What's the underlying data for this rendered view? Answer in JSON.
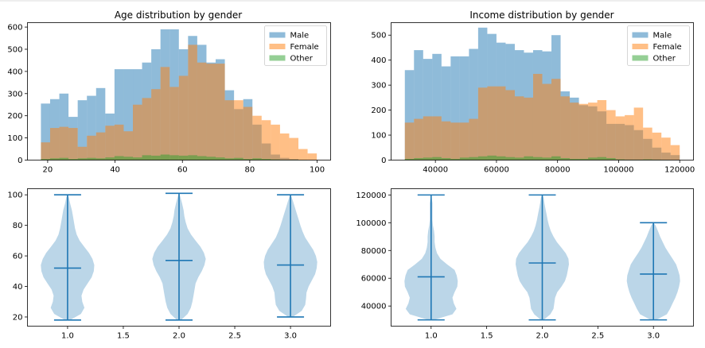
{
  "figure": {
    "top_line_color": "#dddddd"
  },
  "colors": {
    "Male": "#1f77b4",
    "Female": "#ff7f0e",
    "Other": "#2ca02c",
    "violin": "#1f77b4"
  },
  "chart_data": [
    {
      "id": "age_hist",
      "type": "bar",
      "subtype": "overlaid histogram",
      "title": "Age distribution by gender",
      "xlabel": "",
      "ylabel": "",
      "xlim": [
        14,
        104
      ],
      "ylim": [
        0,
        620
      ],
      "xticks": [
        20,
        40,
        60,
        80,
        100
      ],
      "yticks": [
        0,
        100,
        200,
        300,
        400,
        500,
        600
      ],
      "legend": "top-right",
      "alpha": 0.5,
      "series": [
        {
          "name": "Male",
          "bin_start": 18,
          "bin_width": 2.73,
          "values": [
            255,
            275,
            300,
            195,
            270,
            290,
            325,
            210,
            410,
            410,
            410,
            440,
            500,
            590,
            590,
            500,
            560,
            520,
            440,
            455,
            315,
            230,
            275,
            160,
            75,
            25,
            10,
            5,
            0,
            0
          ]
        },
        {
          "name": "Female",
          "bin_start": 18,
          "bin_width": 2.73,
          "values": [
            80,
            145,
            150,
            145,
            60,
            110,
            125,
            155,
            160,
            130,
            250,
            280,
            320,
            420,
            330,
            380,
            520,
            440,
            435,
            435,
            270,
            270,
            240,
            200,
            180,
            160,
            120,
            100,
            50,
            30
          ]
        },
        {
          "name": "Other",
          "bin_start": 18,
          "bin_width": 2.73,
          "values": [
            5,
            8,
            10,
            5,
            8,
            10,
            8,
            12,
            18,
            15,
            12,
            22,
            20,
            25,
            22,
            20,
            22,
            18,
            15,
            12,
            8,
            10,
            5,
            8,
            5,
            3,
            2,
            2,
            1,
            0
          ]
        }
      ]
    },
    {
      "id": "income_hist",
      "type": "bar",
      "subtype": "overlaid histogram",
      "title": "Income distribution by gender",
      "xlabel": "",
      "ylabel": "",
      "xlim": [
        25500,
        124500
      ],
      "ylim": [
        0,
        550
      ],
      "xticks": [
        40000,
        60000,
        80000,
        100000,
        120000
      ],
      "yticks": [
        0,
        100,
        200,
        300,
        400,
        500
      ],
      "legend": "top-right",
      "alpha": 0.5,
      "series": [
        {
          "name": "Male",
          "bin_start": 30000,
          "bin_width": 3000,
          "values": [
            360,
            440,
            405,
            425,
            375,
            415,
            415,
            445,
            530,
            505,
            470,
            465,
            440,
            430,
            440,
            435,
            500,
            275,
            250,
            220,
            215,
            195,
            145,
            145,
            140,
            120,
            85,
            50,
            30,
            20
          ]
        },
        {
          "name": "Female",
          "bin_start": 30000,
          "bin_width": 3000,
          "values": [
            150,
            165,
            175,
            175,
            155,
            150,
            150,
            165,
            290,
            295,
            295,
            280,
            255,
            250,
            345,
            305,
            325,
            255,
            230,
            225,
            230,
            240,
            200,
            175,
            180,
            210,
            130,
            110,
            90,
            60
          ]
        },
        {
          "name": "Other",
          "bin_start": 30000,
          "bin_width": 3000,
          "values": [
            5,
            8,
            10,
            12,
            8,
            5,
            10,
            12,
            15,
            18,
            15,
            12,
            10,
            15,
            12,
            10,
            15,
            8,
            5,
            5,
            10,
            12,
            8,
            3,
            2,
            2,
            3,
            2,
            1,
            0
          ]
        }
      ]
    },
    {
      "id": "age_violin",
      "type": "violin",
      "title": "",
      "xlabel": "",
      "ylabel": "",
      "xlim": [
        0.64,
        3.36
      ],
      "ylim": [
        14,
        104
      ],
      "xticks": [
        "1.0",
        "1.5",
        "2.0",
        "2.5",
        "3.0"
      ],
      "yticks": [
        20,
        40,
        60,
        80,
        100
      ],
      "violins": [
        {
          "position": 1.0,
          "min": 18,
          "max": 100,
          "mean": 52,
          "halfwidth": 0.24,
          "profile": [
            [
              18,
              0.1
            ],
            [
              22,
              0.5
            ],
            [
              26,
              0.63
            ],
            [
              30,
              0.55
            ],
            [
              34,
              0.52
            ],
            [
              38,
              0.6
            ],
            [
              42,
              0.75
            ],
            [
              46,
              0.9
            ],
            [
              50,
              0.98
            ],
            [
              54,
              1.0
            ],
            [
              58,
              0.93
            ],
            [
              62,
              0.8
            ],
            [
              66,
              0.62
            ],
            [
              70,
              0.45
            ],
            [
              74,
              0.34
            ],
            [
              78,
              0.28
            ],
            [
              82,
              0.24
            ],
            [
              86,
              0.2
            ],
            [
              90,
              0.16
            ],
            [
              94,
              0.1
            ],
            [
              98,
              0.05
            ],
            [
              100,
              0.01
            ]
          ]
        },
        {
          "position": 2.0,
          "min": 18,
          "max": 101,
          "mean": 57,
          "halfwidth": 0.24,
          "profile": [
            [
              18,
              0.08
            ],
            [
              22,
              0.32
            ],
            [
              26,
              0.44
            ],
            [
              30,
              0.5
            ],
            [
              34,
              0.54
            ],
            [
              38,
              0.58
            ],
            [
              42,
              0.62
            ],
            [
              46,
              0.72
            ],
            [
              50,
              0.85
            ],
            [
              54,
              0.95
            ],
            [
              58,
              1.0
            ],
            [
              62,
              0.93
            ],
            [
              66,
              0.8
            ],
            [
              70,
              0.62
            ],
            [
              74,
              0.45
            ],
            [
              78,
              0.32
            ],
            [
              82,
              0.25
            ],
            [
              86,
              0.2
            ],
            [
              90,
              0.17
            ],
            [
              94,
              0.12
            ],
            [
              98,
              0.06
            ],
            [
              101,
              0.01
            ]
          ]
        },
        {
          "position": 3.0,
          "min": 20,
          "max": 100,
          "mean": 54,
          "halfwidth": 0.24,
          "profile": [
            [
              20,
              0.08
            ],
            [
              24,
              0.42
            ],
            [
              28,
              0.55
            ],
            [
              32,
              0.58
            ],
            [
              36,
              0.6
            ],
            [
              40,
              0.68
            ],
            [
              44,
              0.8
            ],
            [
              48,
              0.92
            ],
            [
              52,
              0.98
            ],
            [
              56,
              1.0
            ],
            [
              60,
              0.95
            ],
            [
              64,
              0.85
            ],
            [
              68,
              0.7
            ],
            [
              72,
              0.55
            ],
            [
              76,
              0.45
            ],
            [
              80,
              0.37
            ],
            [
              84,
              0.3
            ],
            [
              88,
              0.23
            ],
            [
              92,
              0.16
            ],
            [
              96,
              0.09
            ],
            [
              100,
              0.01
            ]
          ]
        }
      ]
    },
    {
      "id": "income_violin",
      "type": "violin",
      "title": "",
      "xlabel": "",
      "ylabel": "",
      "xlim": [
        0.64,
        3.36
      ],
      "ylim": [
        25500,
        124500
      ],
      "xticks": [
        "1.0",
        "1.5",
        "2.0",
        "2.5",
        "3.0"
      ],
      "yticks": [
        40000,
        60000,
        80000,
        100000,
        120000
      ],
      "violins": [
        {
          "position": 1.0,
          "min": 30000,
          "max": 120000,
          "mean": 61000,
          "halfwidth": 0.24,
          "profile": [
            [
              30000,
              0.1
            ],
            [
              34000,
              0.8
            ],
            [
              38000,
              0.95
            ],
            [
              42000,
              0.85
            ],
            [
              46000,
              0.8
            ],
            [
              50000,
              0.88
            ],
            [
              54000,
              0.98
            ],
            [
              58000,
              1.0
            ],
            [
              62000,
              0.96
            ],
            [
              66000,
              0.88
            ],
            [
              70000,
              0.6
            ],
            [
              74000,
              0.35
            ],
            [
              78000,
              0.22
            ],
            [
              82000,
              0.16
            ],
            [
              86000,
              0.13
            ],
            [
              90000,
              0.13
            ],
            [
              94000,
              0.11
            ],
            [
              98000,
              0.07
            ],
            [
              102000,
              0.05
            ],
            [
              106000,
              0.05
            ],
            [
              110000,
              0.05
            ],
            [
              114000,
              0.05
            ],
            [
              118000,
              0.02
            ],
            [
              120000,
              0.0
            ]
          ]
        },
        {
          "position": 2.0,
          "min": 30000,
          "max": 120000,
          "mean": 71000,
          "halfwidth": 0.24,
          "profile": [
            [
              30000,
              0.05
            ],
            [
              34000,
              0.3
            ],
            [
              38000,
              0.42
            ],
            [
              42000,
              0.45
            ],
            [
              46000,
              0.48
            ],
            [
              50000,
              0.56
            ],
            [
              54000,
              0.72
            ],
            [
              58000,
              0.85
            ],
            [
              62000,
              0.92
            ],
            [
              66000,
              0.96
            ],
            [
              70000,
              1.0
            ],
            [
              74000,
              0.98
            ],
            [
              78000,
              0.88
            ],
            [
              82000,
              0.72
            ],
            [
              86000,
              0.55
            ],
            [
              90000,
              0.42
            ],
            [
              94000,
              0.32
            ],
            [
              98000,
              0.25
            ],
            [
              102000,
              0.2
            ],
            [
              106000,
              0.16
            ],
            [
              110000,
              0.12
            ],
            [
              114000,
              0.08
            ],
            [
              118000,
              0.05
            ],
            [
              120000,
              0.0
            ]
          ]
        },
        {
          "position": 3.0,
          "min": 30000,
          "max": 100000,
          "mean": 63000,
          "halfwidth": 0.24,
          "profile": [
            [
              30000,
              0.1
            ],
            [
              34000,
              0.5
            ],
            [
              38000,
              0.62
            ],
            [
              42000,
              0.72
            ],
            [
              46000,
              0.82
            ],
            [
              50000,
              0.9
            ],
            [
              54000,
              0.96
            ],
            [
              58000,
              1.0
            ],
            [
              62000,
              0.98
            ],
            [
              66000,
              0.92
            ],
            [
              70000,
              0.85
            ],
            [
              74000,
              0.72
            ],
            [
              78000,
              0.58
            ],
            [
              82000,
              0.45
            ],
            [
              86000,
              0.35
            ],
            [
              90000,
              0.25
            ],
            [
              94000,
              0.17
            ],
            [
              98000,
              0.08
            ],
            [
              100000,
              0.0
            ]
          ]
        }
      ]
    }
  ]
}
